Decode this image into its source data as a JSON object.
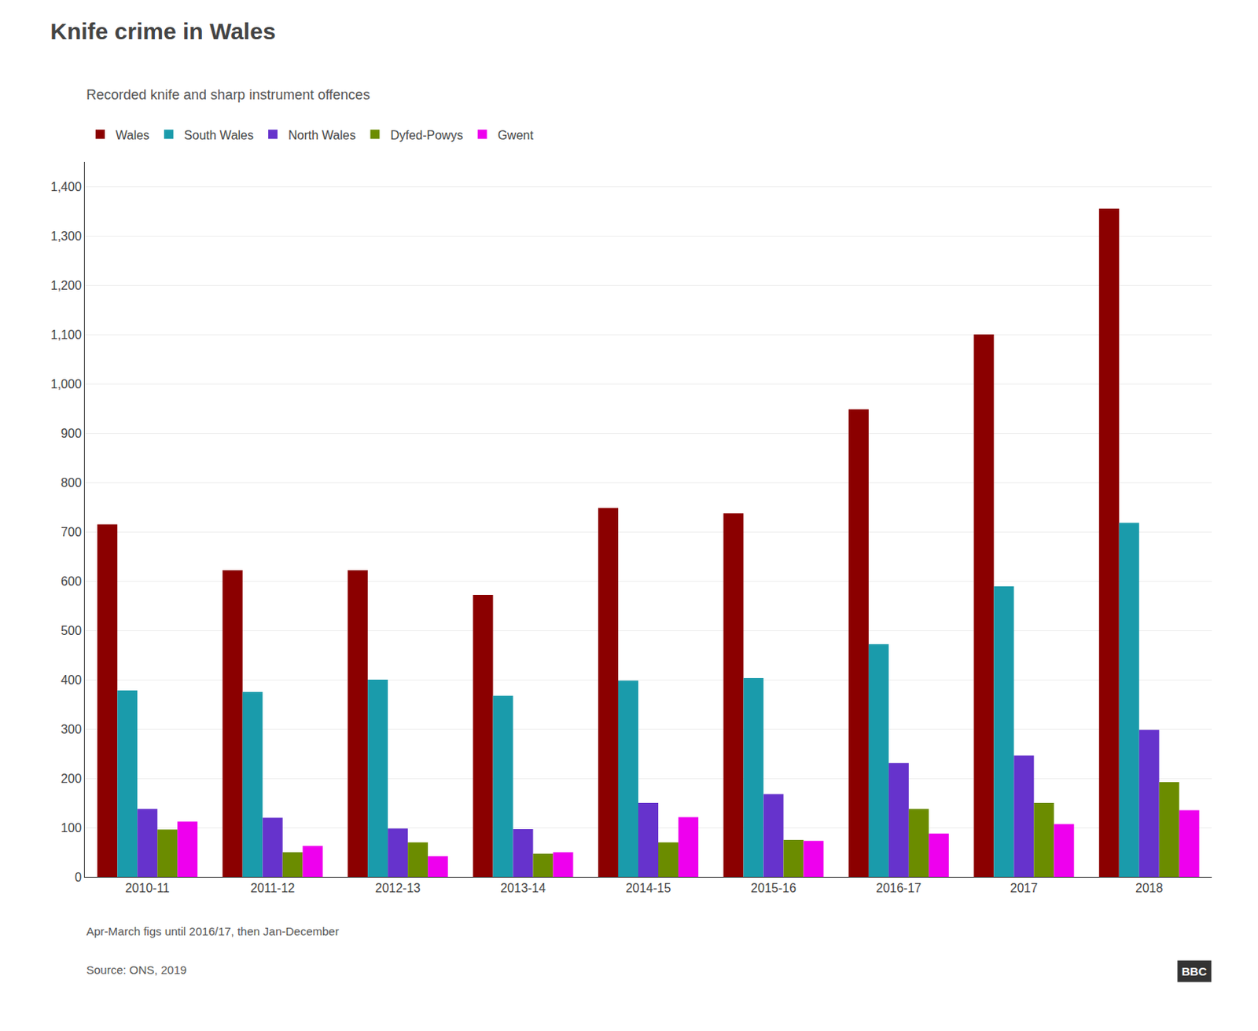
{
  "chart_data": {
    "type": "bar",
    "title": "Knife crime in Wales",
    "subtitle": "Recorded knife and sharp instrument offences",
    "annotations": [
      "Apr-March figs until 2016/17, then Jan-December",
      "Source: ONS, 2019",
      "BBC"
    ],
    "categories": [
      "2010-11",
      "2011-12",
      "2012-13",
      "2013-14",
      "2014-15",
      "2015-16",
      "2016-17",
      "2017",
      "2018"
    ],
    "series": [
      {
        "name": "Wales",
        "color": "#8b0000",
        "values": [
          715,
          622,
          622,
          572,
          748,
          737,
          948,
          1100,
          1355
        ]
      },
      {
        "name": "South Wales",
        "color": "#1a9bab",
        "values": [
          378,
          375,
          400,
          367,
          398,
          403,
          472,
          589,
          718
        ]
      },
      {
        "name": "North Wales",
        "color": "#6633cc",
        "values": [
          138,
          120,
          98,
          97,
          150,
          168,
          231,
          246,
          298
        ]
      },
      {
        "name": "Dyfed-Powys",
        "color": "#6b8c00",
        "values": [
          96,
          50,
          70,
          47,
          70,
          75,
          138,
          150,
          192
        ]
      },
      {
        "name": "Gwent",
        "color": "#ee00ee",
        "values": [
          112,
          63,
          42,
          50,
          121,
          73,
          88,
          107,
          135
        ]
      }
    ],
    "ylim": [
      0,
      1450
    ],
    "yticks": [
      0,
      100,
      200,
      300,
      400,
      500,
      600,
      700,
      800,
      900,
      {
        "value": 1000,
        "label": "1,000"
      },
      {
        "value": 1100,
        "label": "1,100"
      },
      {
        "value": 1200,
        "label": "1,200"
      },
      {
        "value": 1300,
        "label": "1,300"
      },
      {
        "value": 1400,
        "label": "1,400"
      }
    ],
    "grid": true,
    "legend": "top-left"
  }
}
